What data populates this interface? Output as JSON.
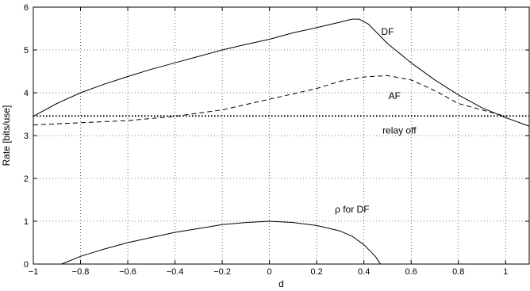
{
  "chart_data": {
    "type": "line",
    "xlabel": "d",
    "ylabel": "Rate [bits/use]",
    "xlim": [
      -1,
      1.1
    ],
    "ylim": [
      0,
      6
    ],
    "xticks": [
      -1,
      -0.8,
      -0.6,
      -0.4,
      -0.2,
      0,
      0.2,
      0.4,
      0.6,
      0.8,
      1
    ],
    "xtick_labels": [
      "−1",
      "−0.8",
      "−0.6",
      "−0.4",
      "−0.2",
      "0",
      "0.2",
      "0.4",
      "0.6",
      "0.8",
      "1"
    ],
    "yticks": [
      0,
      1,
      2,
      3,
      4,
      5,
      6
    ],
    "ytick_labels": [
      "0",
      "1",
      "2",
      "3",
      "4",
      "5",
      "6"
    ],
    "grid": true,
    "series": [
      {
        "name": "DF",
        "style": "solid",
        "x": [
          -1.0,
          -0.9,
          -0.8,
          -0.7,
          -0.6,
          -0.5,
          -0.4,
          -0.3,
          -0.2,
          -0.1,
          0.0,
          0.1,
          0.2,
          0.3,
          0.35,
          0.38,
          0.42,
          0.5,
          0.6,
          0.7,
          0.8,
          0.9,
          1.0,
          1.1
        ],
        "y": [
          3.45,
          3.75,
          4.0,
          4.2,
          4.38,
          4.55,
          4.7,
          4.85,
          5.0,
          5.13,
          5.25,
          5.4,
          5.52,
          5.65,
          5.72,
          5.72,
          5.6,
          5.15,
          4.7,
          4.3,
          3.95,
          3.65,
          3.42,
          3.22
        ]
      },
      {
        "name": "AF",
        "style": "dashed",
        "x": [
          -1.0,
          -0.8,
          -0.6,
          -0.4,
          -0.2,
          0.0,
          0.2,
          0.3,
          0.4,
          0.5,
          0.6,
          0.7,
          0.8,
          0.9,
          1.0
        ],
        "y": [
          3.25,
          3.3,
          3.35,
          3.45,
          3.6,
          3.85,
          4.1,
          4.27,
          4.37,
          4.4,
          4.3,
          4.05,
          3.75,
          3.6,
          3.45
        ]
      },
      {
        "name": "relay off",
        "style": "dotted",
        "x": [
          -1.0,
          1.1
        ],
        "y": [
          3.46,
          3.46
        ]
      },
      {
        "name": "ρ for DF",
        "style": "solid",
        "x": [
          -0.88,
          -0.8,
          -0.7,
          -0.6,
          -0.5,
          -0.4,
          -0.3,
          -0.2,
          -0.1,
          0.0,
          0.1,
          0.2,
          0.3,
          0.35,
          0.4,
          0.45,
          0.47
        ],
        "y": [
          0.0,
          0.18,
          0.35,
          0.5,
          0.62,
          0.74,
          0.83,
          0.92,
          0.97,
          1.0,
          0.97,
          0.9,
          0.77,
          0.65,
          0.45,
          0.17,
          0.0
        ]
      }
    ],
    "annotations": [
      {
        "text": "DF",
        "x": 0.5,
        "y": 5.35
      },
      {
        "text": "AF",
        "x": 0.53,
        "y": 3.85
      },
      {
        "text": "relay off",
        "x": 0.55,
        "y": 3.05
      },
      {
        "text": "ρ for DF",
        "x": 0.35,
        "y": 1.2
      }
    ]
  }
}
